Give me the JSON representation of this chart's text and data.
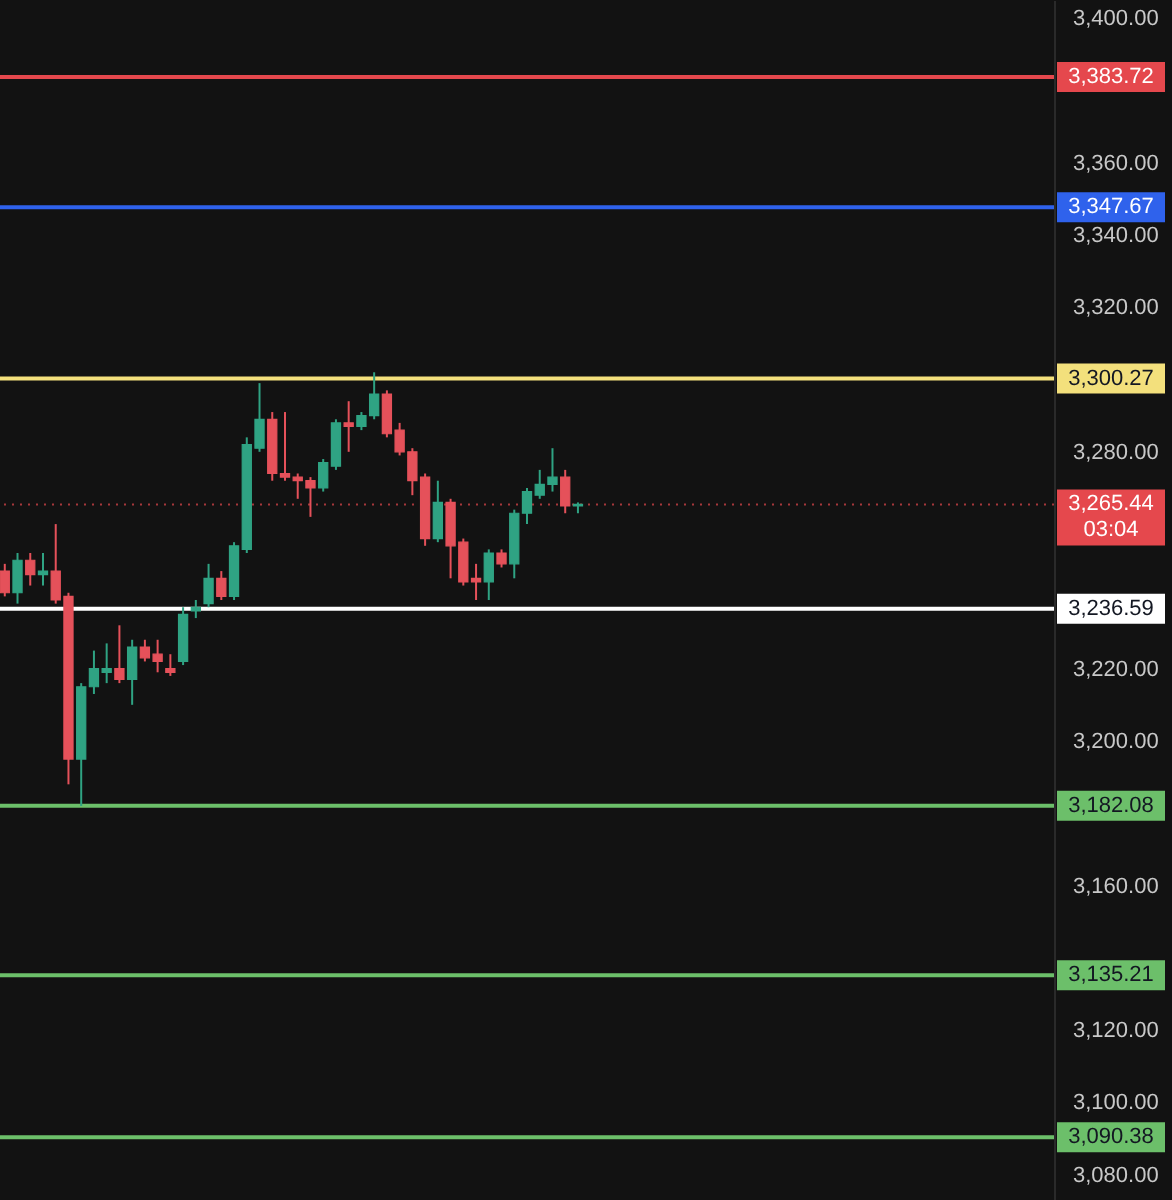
{
  "chart_data": {
    "type": "candlestick",
    "categories": [
      null,
      null,
      null,
      null,
      null,
      null,
      null,
      null,
      null,
      null,
      null,
      null,
      null,
      null,
      null,
      null,
      null,
      null,
      null,
      null,
      null,
      null,
      null,
      null,
      null,
      null,
      null,
      null,
      null,
      null,
      null,
      null,
      null,
      null,
      null,
      null,
      null,
      null,
      null,
      null,
      null,
      null,
      null,
      null,
      null,
      null,
      null,
      null,
      null,
      null,
      null,
      null,
      null,
      null,
      null,
      null,
      null,
      null,
      null,
      null,
      null,
      null,
      null,
      null,
      null,
      null,
      null,
      null,
      null,
      null,
      null,
      null,
      null,
      null,
      null,
      null,
      null,
      null,
      null,
      null,
      null,
      null,
      null
    ],
    "ohlc": [
      [
        3247,
        3249,
        3240,
        3241
      ],
      [
        3241,
        3252,
        3238,
        3250
      ],
      [
        3250,
        3252,
        3243,
        3246
      ],
      [
        3246,
        3252,
        3243,
        3247
      ],
      [
        3247,
        3260,
        3238,
        3239
      ],
      [
        3240,
        3241,
        3188,
        3195
      ],
      [
        3195,
        3216,
        3182,
        3215
      ],
      [
        3215,
        3225,
        3213,
        3220
      ],
      [
        3219,
        3227,
        3216,
        3220
      ],
      [
        3220,
        3232,
        3216,
        3217
      ],
      [
        3217,
        3228,
        3210,
        3226
      ],
      [
        3226,
        3228,
        3222,
        3223
      ],
      [
        3224,
        3228,
        3219,
        3222
      ],
      [
        3220,
        3224,
        3218,
        3219
      ],
      [
        3222,
        3237,
        3221,
        3235
      ],
      [
        3236,
        3239,
        3234,
        3237
      ],
      [
        3238,
        3249,
        3237,
        3245
      ],
      [
        3245,
        3247,
        3239,
        3240
      ],
      [
        3240,
        3255,
        3239,
        3254
      ],
      [
        3253,
        3284,
        3252,
        3282
      ],
      [
        3281,
        3299,
        3280,
        3289
      ],
      [
        3289,
        3291,
        3272,
        3274
      ],
      [
        3274,
        3291,
        3272,
        3273
      ],
      [
        3273,
        3274,
        3267,
        3272
      ],
      [
        3272,
        3273,
        3262,
        3270
      ],
      [
        3270,
        3278,
        3269,
        3277
      ],
      [
        3276,
        3289,
        3275,
        3288
      ],
      [
        3288,
        3294,
        3280,
        3287
      ],
      [
        3287,
        3291,
        3286,
        3290
      ],
      [
        3290,
        3302,
        3289,
        3296
      ],
      [
        3296,
        3297,
        3284,
        3285
      ],
      [
        3286,
        3288,
        3279,
        3280
      ],
      [
        3280,
        3281,
        3268,
        3272
      ],
      [
        3273,
        3274,
        3254,
        3256
      ],
      [
        3256,
        3272,
        3255,
        3266
      ],
      [
        3266,
        3267,
        3245,
        3254
      ],
      [
        3255,
        3256,
        3243,
        3244
      ],
      [
        3245,
        3249,
        3239,
        3244
      ],
      [
        3244,
        3253,
        3239,
        3252
      ],
      [
        3252,
        3253,
        3248,
        3249
      ],
      [
        3249,
        3264,
        3245,
        3263
      ],
      [
        3263,
        3270,
        3260,
        3269
      ],
      [
        3268,
        3275,
        3267,
        3271
      ],
      [
        3271,
        3281,
        3269,
        3273
      ],
      [
        3273,
        3275,
        3263,
        3265
      ],
      [
        3265,
        3266,
        3263,
        3265.44
      ],
      null,
      null,
      null,
      null,
      null,
      null,
      null,
      null,
      null,
      null,
      null,
      null,
      null,
      null,
      null,
      null,
      null,
      null,
      null,
      null,
      null,
      null,
      null,
      null,
      null,
      null,
      null,
      null,
      null,
      null,
      null,
      null,
      null,
      null,
      null,
      null,
      null
    ],
    "colors": [
      "#e5515a",
      "#2fa383",
      "#e5515a",
      "#2fa383",
      "#e5515a",
      "#e5515a",
      "#2fa383",
      "#2fa383",
      "#2fa383",
      "#e5515a",
      "#2fa383",
      "#e5515a",
      "#e5515a",
      "#e5515a",
      "#2fa383",
      "#2fa383",
      "#2fa383",
      "#e5515a",
      "#2fa383",
      "#2fa383",
      "#2fa383",
      "#e5515a",
      "#e5515a",
      "#e5515a",
      "#e5515a",
      "#2fa383",
      "#2fa383",
      "#e5515a",
      "#2fa383",
      "#2fa383",
      "#e5515a",
      "#e5515a",
      "#e5515a",
      "#e5515a",
      "#2fa383",
      "#e5515a",
      "#e5515a",
      "#e5515a",
      "#2fa383",
      "#e5515a",
      "#2fa383",
      "#2fa383",
      "#2fa383",
      "#2fa383",
      "#e5515a",
      "#2fa383",
      null,
      null,
      null,
      null,
      null,
      null,
      null,
      null,
      null,
      null,
      null,
      null,
      null,
      null,
      null,
      null,
      null,
      null,
      null,
      null,
      null,
      null,
      null,
      null,
      null,
      null,
      null,
      null,
      null,
      null,
      null,
      null,
      null,
      null,
      null,
      null,
      null
    ],
    "ylim": [
      3073,
      3405
    ],
    "yticks": [
      {
        "value": 3080,
        "label": "3,080.00"
      },
      {
        "value": 3100,
        "label": "3,100.00"
      },
      {
        "value": 3120,
        "label": "3,120.00"
      },
      {
        "value": 3160,
        "label": "3,160.00"
      },
      {
        "value": 3200,
        "label": "3,200.00"
      },
      {
        "value": 3220,
        "label": "3,220.00"
      },
      {
        "value": 3280,
        "label": "3,280.00"
      },
      {
        "value": 3320,
        "label": "3,320.00"
      },
      {
        "value": 3340,
        "label": "3,340.00"
      },
      {
        "value": 3360,
        "label": "3,360.00"
      },
      {
        "value": 3400,
        "label": "3,400.00"
      }
    ],
    "tick_labels": "y",
    "ref_lines": [
      {
        "axis": "y",
        "value": 3383.72,
        "label": "3,383.72",
        "color": "#e5484d"
      },
      {
        "axis": "y",
        "value": 3347.67,
        "label": "3,347.67",
        "color": "#2f62ec"
      },
      {
        "axis": "y",
        "value": 3300.27,
        "label": "3,300.27",
        "color": "#f3e07c"
      },
      {
        "axis": "y",
        "value": 3265.44,
        "label": "3,265.44\n03:04",
        "color": "#e5484d",
        "line_style": "dotted"
      },
      {
        "axis": "y",
        "value": 3236.59,
        "label": "3,236.59",
        "color": "#ffffff"
      },
      {
        "axis": "y",
        "value": 3182.08,
        "label": "3,182.08",
        "color": "#6cbf6a"
      },
      {
        "axis": "y",
        "value": 3135.21,
        "label": "3,135.21",
        "color": "#6cbf6a"
      },
      {
        "axis": "y",
        "value": 3090.38,
        "label": "3,090.38",
        "color": "#6cbf6a"
      }
    ]
  }
}
